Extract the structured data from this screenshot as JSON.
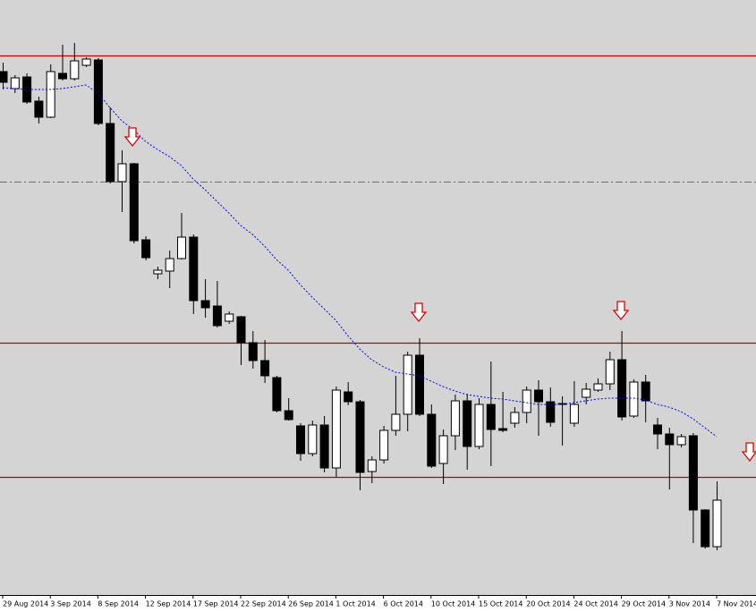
{
  "chart_data": {
    "type": "candlestick",
    "categories": [
      "29 Aug 2014",
      null,
      null,
      null,
      "3 Sep 2014",
      null,
      null,
      null,
      "8 Sep 2014",
      null,
      null,
      null,
      "12 Sep 2014",
      null,
      null,
      null,
      "17 Sep 2014",
      null,
      null,
      null,
      "22 Sep 2014",
      null,
      null,
      null,
      "26 Sep 2014",
      null,
      null,
      null,
      "1 Oct 2014",
      null,
      null,
      null,
      "6 Oct 2014",
      null,
      null,
      null,
      "10 Oct 2014",
      null,
      null,
      null,
      "15 Oct 2014",
      null,
      null,
      null,
      "20 Oct 2014",
      null,
      null,
      null,
      "24 Oct 2014",
      null,
      null,
      null,
      "29 Oct 2014",
      null,
      null,
      null,
      "3 Nov 2014",
      null,
      null,
      null,
      "7 Nov 2014"
    ],
    "open": [
      585,
      566,
      579,
      552,
      534,
      583,
      577,
      592,
      598,
      527,
      462,
      482,
      397,
      359,
      362,
      376,
      400,
      329,
      323,
      306,
      311,
      282,
      262,
      243,
      206,
      189,
      158,
      190,
      142,
      227,
      216,
      138,
      151,
      184,
      202,
      268,
      202,
      147,
      178,
      217,
      166,
      213,
      186,
      192,
      204,
      229,
      216,
      214,
      192,
      221,
      229,
      236,
      263,
      200,
      238,
      190,
      180,
      168,
      178,
      95,
      54
    ],
    "high": [
      595,
      581,
      583,
      557,
      593,
      615,
      617,
      601,
      600,
      545,
      497,
      483,
      401,
      367,
      385,
      427,
      403,
      353,
      351,
      317,
      312,
      295,
      285,
      245,
      220,
      192,
      195,
      200,
      233,
      238,
      218,
      155,
      189,
      245,
      272,
      287,
      213,
      185,
      224,
      225,
      220,
      261,
      227,
      210,
      233,
      240,
      232,
      222,
      239,
      237,
      242,
      272,
      295,
      241,
      246,
      198,
      187,
      180,
      181,
      96,
      127
    ],
    "low": [
      565,
      561,
      549,
      527,
      533,
      575,
      575,
      590,
      525,
      460,
      428,
      393,
      374,
      353,
      343,
      375,
      314,
      310,
      299,
      303,
      257,
      253,
      237,
      204,
      195,
      150,
      155,
      137,
      132,
      212,
      117,
      125,
      147,
      178,
      183,
      200,
      142,
      124,
      162,
      140,
      163,
      144,
      182,
      187,
      192,
      178,
      188,
      167,
      188,
      213,
      227,
      229,
      195,
      198,
      193,
      163,
      118,
      165,
      58,
      52,
      50
    ],
    "close": [
      573,
      578,
      551,
      534,
      585,
      577,
      597,
      599,
      527,
      462,
      482,
      396,
      377,
      363,
      376,
      400,
      329,
      321,
      301,
      314,
      282,
      262,
      245,
      206,
      196,
      158,
      190,
      142,
      229,
      216,
      137,
      151,
      184,
      202,
      268,
      202,
      144,
      178,
      217,
      166,
      213,
      185,
      184,
      204,
      229,
      216,
      193,
      213,
      213,
      230,
      236,
      263,
      199,
      238,
      217,
      180,
      168,
      177,
      95,
      54,
      106
    ],
    "ma": [
      567,
      566,
      565,
      565,
      565,
      566,
      568,
      570,
      561,
      545,
      530,
      520,
      507,
      498,
      490,
      480,
      465,
      453,
      440,
      427,
      413,
      403,
      390,
      375,
      363,
      347,
      333,
      320,
      307,
      290,
      275,
      263,
      255,
      249,
      247,
      245,
      239,
      233,
      228,
      224,
      222,
      220,
      219,
      217,
      215,
      213,
      213,
      213,
      215,
      217,
      219,
      220,
      220,
      220,
      218,
      213,
      210,
      205,
      197,
      187,
      177
    ],
    "up_color": "#ffffff",
    "down_color": "#000000",
    "ma_color": "#0000ff",
    "hlines": [
      {
        "value": 603,
        "color": "#c00000"
      },
      {
        "value": 282,
        "color": "#c00000"
      },
      {
        "value": 132,
        "color": "#c00000"
      },
      {
        "value": 462,
        "color": "#2ca02c",
        "dash": true
      }
    ],
    "ylim": [
      0,
      665
    ]
  }
}
